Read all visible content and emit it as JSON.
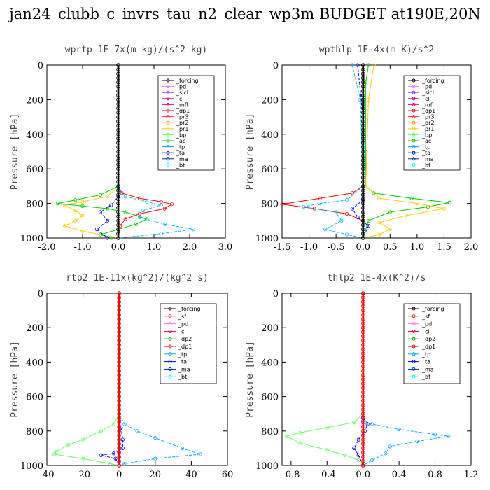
{
  "title": "jan24_clubb_c_invrs_tau_n2_clear_wp3m  BUDGET at190E,20N",
  "chart_data": [
    {
      "type": "line",
      "title": "wprtp  1E-7x(m kg)/(s^2 kg)",
      "ylabel": "Pressure [hPa]",
      "xlim": [
        -2.0,
        3.0
      ],
      "ylim": [
        1000,
        0
      ],
      "xticks": [
        "-2.0",
        "-1.0",
        "0.0",
        "1.0",
        "2.0",
        "3.0"
      ],
      "yticks": [
        "0",
        "200",
        "400",
        "600",
        "800",
        "1000"
      ],
      "legend": [
        "_forcing",
        "_pd",
        "_sicl",
        "_cl",
        "_mfl",
        "_dp1",
        "_pr3",
        "_pr2",
        "_pr1",
        "_bp",
        "_ac",
        "_tp",
        "_ta",
        "_ma",
        "_bt"
      ],
      "series": [
        {
          "name": "_dp1",
          "color": "#ff0000",
          "values": [
            [
              0,
              0
            ],
            [
              0,
              700
            ],
            [
              0.1,
              740
            ],
            [
              0.6,
              770
            ],
            [
              1.2,
              790
            ],
            [
              1.5,
              805
            ],
            [
              1.3,
              830
            ],
            [
              0.6,
              860
            ],
            [
              0.2,
              890
            ],
            [
              0.05,
              930
            ],
            [
              0,
              1000
            ]
          ]
        },
        {
          "name": "_pr1",
          "color": "#ffcc00",
          "values": [
            [
              0,
              0
            ],
            [
              0,
              700
            ],
            [
              -0.3,
              760
            ],
            [
              -1.0,
              790
            ],
            [
              -1.5,
              810
            ],
            [
              -1.2,
              840
            ],
            [
              -1.0,
              870
            ],
            [
              -1.2,
              900
            ],
            [
              -1.5,
              930
            ],
            [
              -1.0,
              960
            ],
            [
              -0.3,
              990
            ],
            [
              0,
              1000
            ]
          ]
        },
        {
          "name": "_ac",
          "color": "#00cc00",
          "values": [
            [
              0,
              0
            ],
            [
              0,
              700
            ],
            [
              -0.5,
              750
            ],
            [
              -1.2,
              780
            ],
            [
              -1.7,
              800
            ],
            [
              -1.0,
              815
            ],
            [
              -0.3,
              830
            ],
            [
              0.2,
              850
            ],
            [
              0.8,
              890
            ],
            [
              0.5,
              920
            ],
            [
              0,
              950
            ],
            [
              -0.5,
              980
            ],
            [
              -0.2,
              1000
            ]
          ]
        },
        {
          "name": "_tp",
          "color": "#00bfff",
          "values": [
            [
              0,
              0
            ],
            [
              0,
              720
            ],
            [
              0.2,
              760
            ],
            [
              0.8,
              790
            ],
            [
              1.2,
              810
            ],
            [
              0.7,
              840
            ],
            [
              0.6,
              880
            ],
            [
              1.3,
              920
            ],
            [
              2.1,
              950
            ],
            [
              1.2,
              975
            ],
            [
              0,
              1000
            ]
          ]
        },
        {
          "name": "_ta",
          "color": "#0000ff",
          "values": [
            [
              0,
              0
            ],
            [
              0,
              760
            ],
            [
              -0.2,
              810
            ],
            [
              -0.5,
              850
            ],
            [
              -0.3,
              900
            ],
            [
              -0.6,
              950
            ],
            [
              -0.3,
              1000
            ]
          ]
        },
        {
          "name": "_forcing",
          "color": "#000000",
          "values": [
            [
              0,
              0
            ],
            [
              0,
              1000
            ]
          ]
        }
      ]
    },
    {
      "type": "line",
      "title": "wpthlp  1E-4x(m K)/s^2",
      "ylabel": "Pressure [hPa]",
      "xlim": [
        -1.5,
        2.0
      ],
      "ylim": [
        1000,
        0
      ],
      "xticks": [
        "-1.5",
        "-1.0",
        "-0.5",
        "0.0",
        "0.5",
        "1.0",
        "1.5",
        "2.0"
      ],
      "yticks": [
        "0",
        "200",
        "400",
        "600",
        "800",
        "1000"
      ],
      "legend": [
        "_forcing",
        "_pd",
        "_sicl",
        "_cl",
        "_mfl",
        "_dp1",
        "_pr3",
        "_pr2",
        "_pr1",
        "_bp",
        "_ac",
        "_tp",
        "_ta",
        "_ma",
        "_bt"
      ],
      "series": [
        {
          "name": "_ac",
          "color": "#00cc00",
          "values": [
            [
              0.1,
              0
            ],
            [
              0.05,
              100
            ],
            [
              0.05,
              500
            ],
            [
              0.05,
              700
            ],
            [
              0.2,
              740
            ],
            [
              0.9,
              770
            ],
            [
              1.6,
              795
            ],
            [
              1.2,
              820
            ],
            [
              0.5,
              850
            ],
            [
              0.1,
              900
            ],
            [
              0,
              1000
            ]
          ]
        },
        {
          "name": "_dp1",
          "color": "#ff0000",
          "values": [
            [
              0,
              0
            ],
            [
              0,
              700
            ],
            [
              -0.2,
              740
            ],
            [
              -0.8,
              770
            ],
            [
              -1.5,
              805
            ],
            [
              -0.9,
              830
            ],
            [
              -0.3,
              860
            ],
            [
              0,
              900
            ],
            [
              0,
              1000
            ]
          ]
        },
        {
          "name": "_pr1",
          "color": "#ffcc00",
          "values": [
            [
              0.2,
              0
            ],
            [
              0.1,
              200
            ],
            [
              0.05,
              700
            ],
            [
              0.3,
              770
            ],
            [
              1.0,
              800
            ],
            [
              1.5,
              830
            ],
            [
              0.8,
              870
            ],
            [
              0.3,
              910
            ],
            [
              0.5,
              950
            ],
            [
              0.3,
              980
            ],
            [
              0,
              1000
            ]
          ]
        },
        {
          "name": "_tp",
          "color": "#00bfff",
          "values": [
            [
              -0.2,
              0
            ],
            [
              -0.05,
              200
            ],
            [
              0,
              700
            ],
            [
              -0.3,
              780
            ],
            [
              -0.8,
              800
            ],
            [
              -1.1,
              820
            ],
            [
              -0.5,
              850
            ],
            [
              -0.4,
              900
            ],
            [
              -0.7,
              950
            ],
            [
              -0.3,
              980
            ],
            [
              0,
              1000
            ]
          ]
        },
        {
          "name": "_ta",
          "color": "#0000ff",
          "values": [
            [
              -0.1,
              0
            ],
            [
              0,
              300
            ],
            [
              0,
              780
            ],
            [
              -0.2,
              830
            ],
            [
              -0.1,
              880
            ],
            [
              0.1,
              930
            ],
            [
              0,
              1000
            ]
          ]
        },
        {
          "name": "_forcing",
          "color": "#000000",
          "values": [
            [
              0,
              0
            ],
            [
              0,
              1000
            ]
          ]
        }
      ]
    },
    {
      "type": "line",
      "title": "rtp2  1E-11x(kg^2)/(kg^2 s)",
      "ylabel": "Pressure [hPa]",
      "xlim": [
        -40,
        60
      ],
      "ylim": [
        1000,
        0
      ],
      "xticks": [
        "-40",
        "-20",
        "0",
        "20",
        "40",
        "60"
      ],
      "yticks": [
        "0",
        "200",
        "400",
        "600",
        "800",
        "1000"
      ],
      "legend": [
        "_forcing",
        "_sf",
        "_pd",
        "_cl",
        "_dp2",
        "_dp1",
        "_tp",
        "_ta",
        "_ma",
        "_bt"
      ],
      "series": [
        {
          "name": "_dp1",
          "color": "#66ff66",
          "values": [
            [
              0,
              0
            ],
            [
              0,
              700
            ],
            [
              -3,
              760
            ],
            [
              -10,
              800
            ],
            [
              -20,
              850
            ],
            [
              -28,
              880
            ],
            [
              -35,
              920
            ],
            [
              -36,
              935
            ],
            [
              -20,
              960
            ],
            [
              -5,
              990
            ],
            [
              0,
              1000
            ]
          ]
        },
        {
          "name": "_tp",
          "color": "#00aaff",
          "values": [
            [
              0,
              0
            ],
            [
              0,
              700
            ],
            [
              3,
              760
            ],
            [
              10,
              800
            ],
            [
              20,
              840
            ],
            [
              35,
              900
            ],
            [
              45,
              935
            ],
            [
              20,
              960
            ],
            [
              3,
              990
            ],
            [
              0,
              1000
            ]
          ]
        },
        {
          "name": "_ta",
          "color": "#0000ff",
          "values": [
            [
              0,
              0
            ],
            [
              0,
              740
            ],
            [
              1,
              780
            ],
            [
              2,
              850
            ],
            [
              2,
              900
            ],
            [
              -3,
              930
            ],
            [
              -10,
              940
            ],
            [
              -2,
              960
            ],
            [
              0,
              1000
            ]
          ]
        },
        {
          "name": "_forcing",
          "color": "#ff0000",
          "values": [
            [
              0,
              0
            ],
            [
              0,
              1000
            ]
          ]
        }
      ]
    },
    {
      "type": "line",
      "title": "thlp2  1E-4x(K^2)/s",
      "ylabel": "Pressure [hPa]",
      "xlim": [
        -0.9,
        1.2
      ],
      "ylim": [
        1000,
        0
      ],
      "xticks": [
        "-0.8",
        "-0.4",
        "0.0",
        "0.4",
        "0.8",
        "1.2"
      ],
      "yticks": [
        "0",
        "200",
        "400",
        "600",
        "800",
        "1000"
      ],
      "legend": [
        "_forcing",
        "_sf",
        "_pd",
        "_cl",
        "_dp2",
        "_dp1",
        "_tp",
        "_ta",
        "_ma",
        "_bt"
      ],
      "series": [
        {
          "name": "_dp1",
          "color": "#66ff66",
          "values": [
            [
              0,
              0
            ],
            [
              0,
              700
            ],
            [
              -0.1,
              750
            ],
            [
              -0.4,
              780
            ],
            [
              -0.7,
              810
            ],
            [
              -0.85,
              830
            ],
            [
              -0.7,
              870
            ],
            [
              -0.4,
              910
            ],
            [
              -0.2,
              940
            ],
            [
              -0.05,
              970
            ],
            [
              0,
              1000
            ]
          ]
        },
        {
          "name": "_tp",
          "color": "#00aaff",
          "values": [
            [
              0,
              0
            ],
            [
              0,
              740
            ],
            [
              0.1,
              760
            ],
            [
              0.4,
              790
            ],
            [
              0.8,
              820
            ],
            [
              0.95,
              830
            ],
            [
              0.6,
              860
            ],
            [
              0.3,
              890
            ],
            [
              0.25,
              930
            ],
            [
              0.1,
              970
            ],
            [
              0,
              1000
            ]
          ]
        },
        {
          "name": "_ta",
          "color": "#0000ff",
          "values": [
            [
              0,
              0
            ],
            [
              0,
              720
            ],
            [
              0.05,
              760
            ],
            [
              0.02,
              800
            ],
            [
              -0.05,
              850
            ],
            [
              -0.1,
              900
            ],
            [
              -0.05,
              940
            ],
            [
              0,
              1000
            ]
          ]
        },
        {
          "name": "_forcing",
          "color": "#ff0000",
          "values": [
            [
              0,
              0
            ],
            [
              0,
              1000
            ]
          ]
        }
      ]
    }
  ]
}
